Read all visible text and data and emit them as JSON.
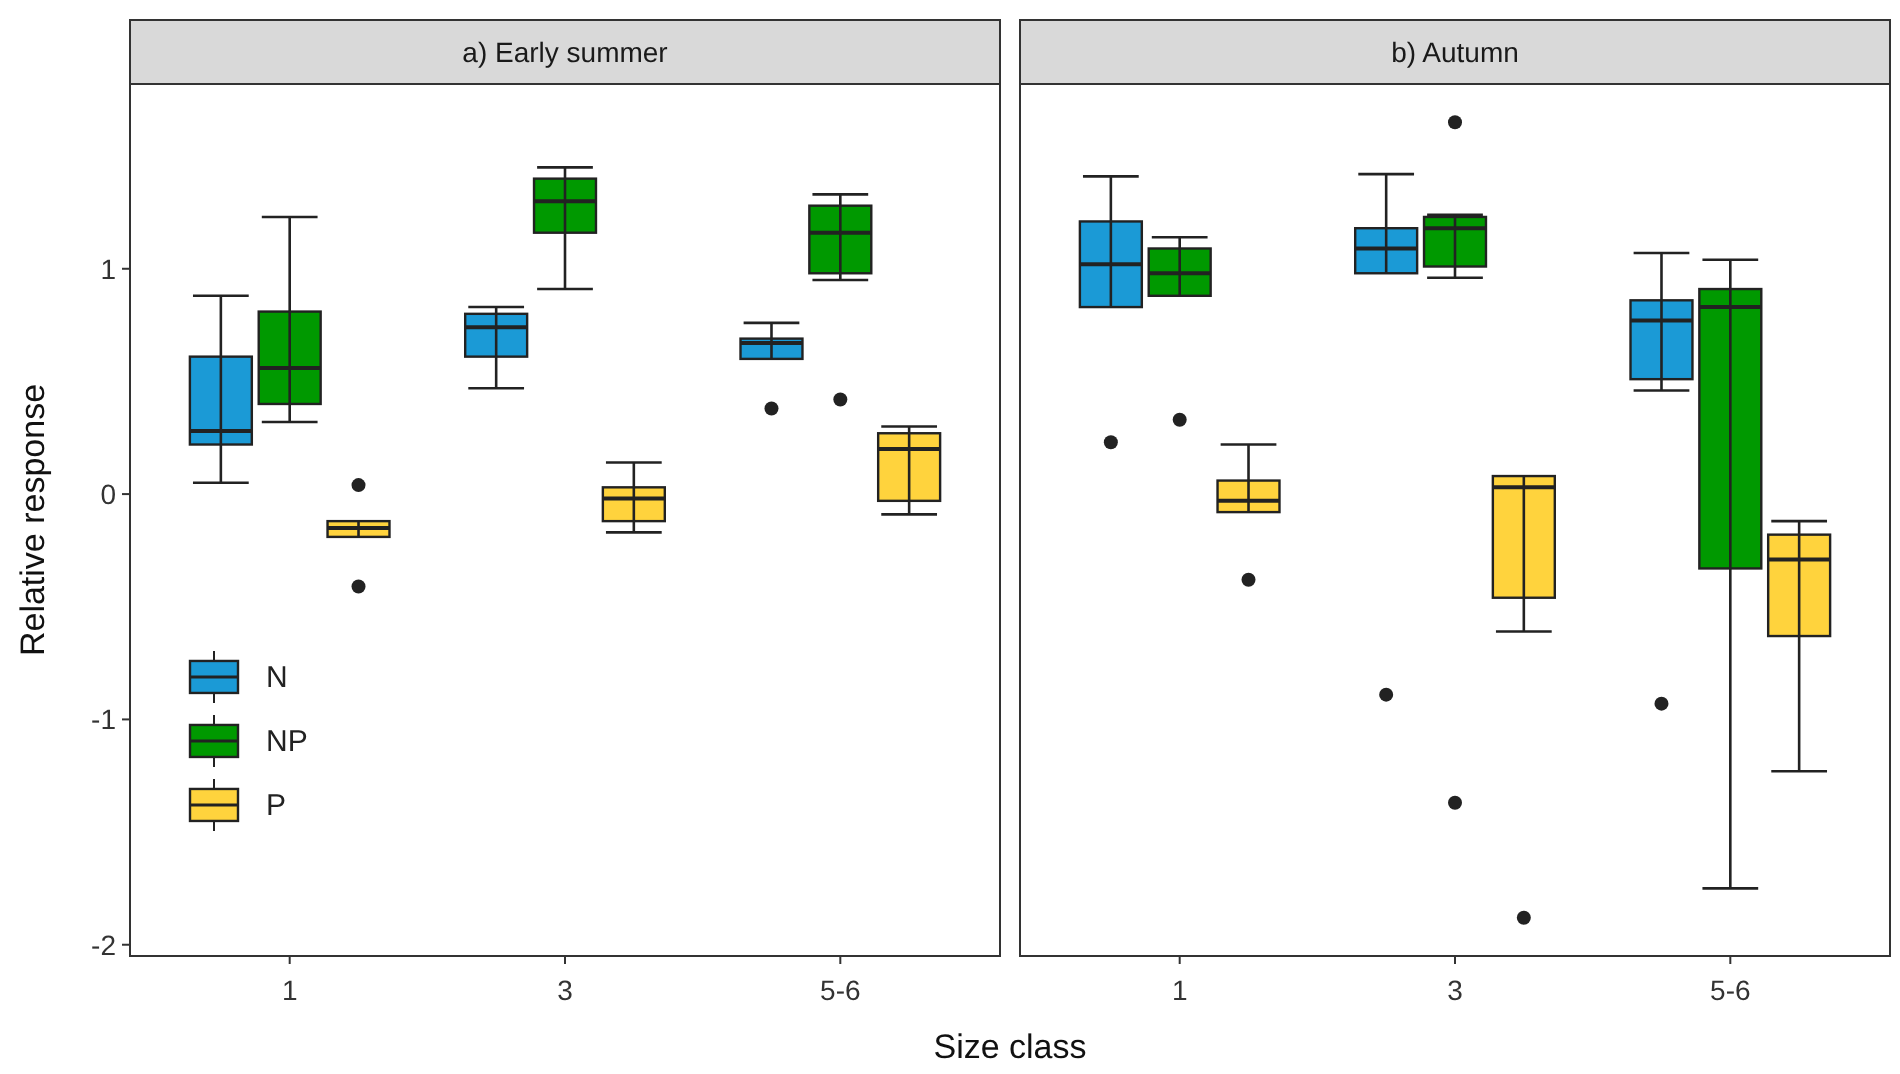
{
  "chart_data": [
    {
      "type": "box",
      "title": "a) Early summer",
      "xlabel": "Size class",
      "ylabel": "Relative response",
      "categories": [
        "1",
        "3",
        "5-6"
      ],
      "ylim": [
        -2.05,
        1.82
      ],
      "yticks": [
        -2,
        -1,
        0,
        1
      ],
      "legend": "left",
      "series": [
        {
          "name": "N",
          "color": "#1b9ad6",
          "boxes": [
            {
              "low": 0.05,
              "q1": 0.22,
              "median": 0.28,
              "q3": 0.61,
              "high": 0.88
            },
            {
              "low": 0.47,
              "q1": 0.61,
              "median": 0.74,
              "q3": 0.8,
              "high": 0.83
            },
            {
              "low": 0.6,
              "q1": 0.6,
              "median": 0.67,
              "q3": 0.69,
              "high": 0.76,
              "outliers": [
                0.38
              ]
            }
          ]
        },
        {
          "name": "NP",
          "color": "#009900",
          "boxes": [
            {
              "low": 0.32,
              "q1": 0.4,
              "median": 0.56,
              "q3": 0.81,
              "high": 1.23
            },
            {
              "low": 0.91,
              "q1": 1.16,
              "median": 1.3,
              "q3": 1.4,
              "high": 1.45
            },
            {
              "low": 0.95,
              "q1": 0.98,
              "median": 1.16,
              "q3": 1.28,
              "high": 1.33,
              "outliers": [
                0.42
              ]
            }
          ]
        },
        {
          "name": "P",
          "color": "#ffd33d",
          "boxes": [
            {
              "low": -0.19,
              "q1": -0.19,
              "median": -0.15,
              "q3": -0.12,
              "high": -0.12,
              "outliers": [
                0.04,
                -0.41
              ]
            },
            {
              "low": -0.17,
              "q1": -0.12,
              "median": -0.02,
              "q3": 0.03,
              "high": 0.14
            },
            {
              "low": -0.09,
              "q1": -0.03,
              "median": 0.2,
              "q3": 0.27,
              "high": 0.3
            }
          ]
        }
      ]
    },
    {
      "type": "box",
      "title": "b) Autumn",
      "categories": [
        "1",
        "3",
        "5-6"
      ],
      "ylim": [
        -2.05,
        1.82
      ],
      "tick_labels": "x",
      "series": [
        {
          "color": "#1b9ad6",
          "boxes": [
            {
              "low": 0.83,
              "q1": 0.83,
              "median": 1.02,
              "q3": 1.21,
              "high": 1.41,
              "outliers": [
                0.23
              ]
            },
            {
              "low": 0.98,
              "q1": 0.98,
              "median": 1.09,
              "q3": 1.18,
              "high": 1.42,
              "outliers": [
                -0.89
              ]
            },
            {
              "low": 0.46,
              "q1": 0.51,
              "median": 0.77,
              "q3": 0.86,
              "high": 1.07,
              "outliers": [
                -0.93
              ]
            }
          ]
        },
        {
          "color": "#009900",
          "boxes": [
            {
              "low": 0.88,
              "q1": 0.88,
              "median": 0.98,
              "q3": 1.09,
              "high": 1.14,
              "outliers": [
                0.33
              ]
            },
            {
              "low": 0.96,
              "q1": 1.01,
              "median": 1.18,
              "q3": 1.23,
              "high": 1.24,
              "outliers": [
                1.65,
                -1.37
              ]
            },
            {
              "low": -1.75,
              "q1": -0.33,
              "median": 0.83,
              "q3": 0.91,
              "high": 1.04
            }
          ]
        },
        {
          "color": "#ffd33d",
          "boxes": [
            {
              "low": -0.08,
              "q1": -0.08,
              "median": -0.03,
              "q3": 0.06,
              "high": 0.22,
              "outliers": [
                -0.38
              ]
            },
            {
              "low": -0.61,
              "q1": -0.46,
              "median": 0.03,
              "q3": 0.08,
              "high": 0.08,
              "outliers": [
                -1.88
              ]
            },
            {
              "low": -1.23,
              "q1": -0.63,
              "median": -0.29,
              "q3": -0.18,
              "high": -0.12
            }
          ]
        }
      ]
    }
  ]
}
